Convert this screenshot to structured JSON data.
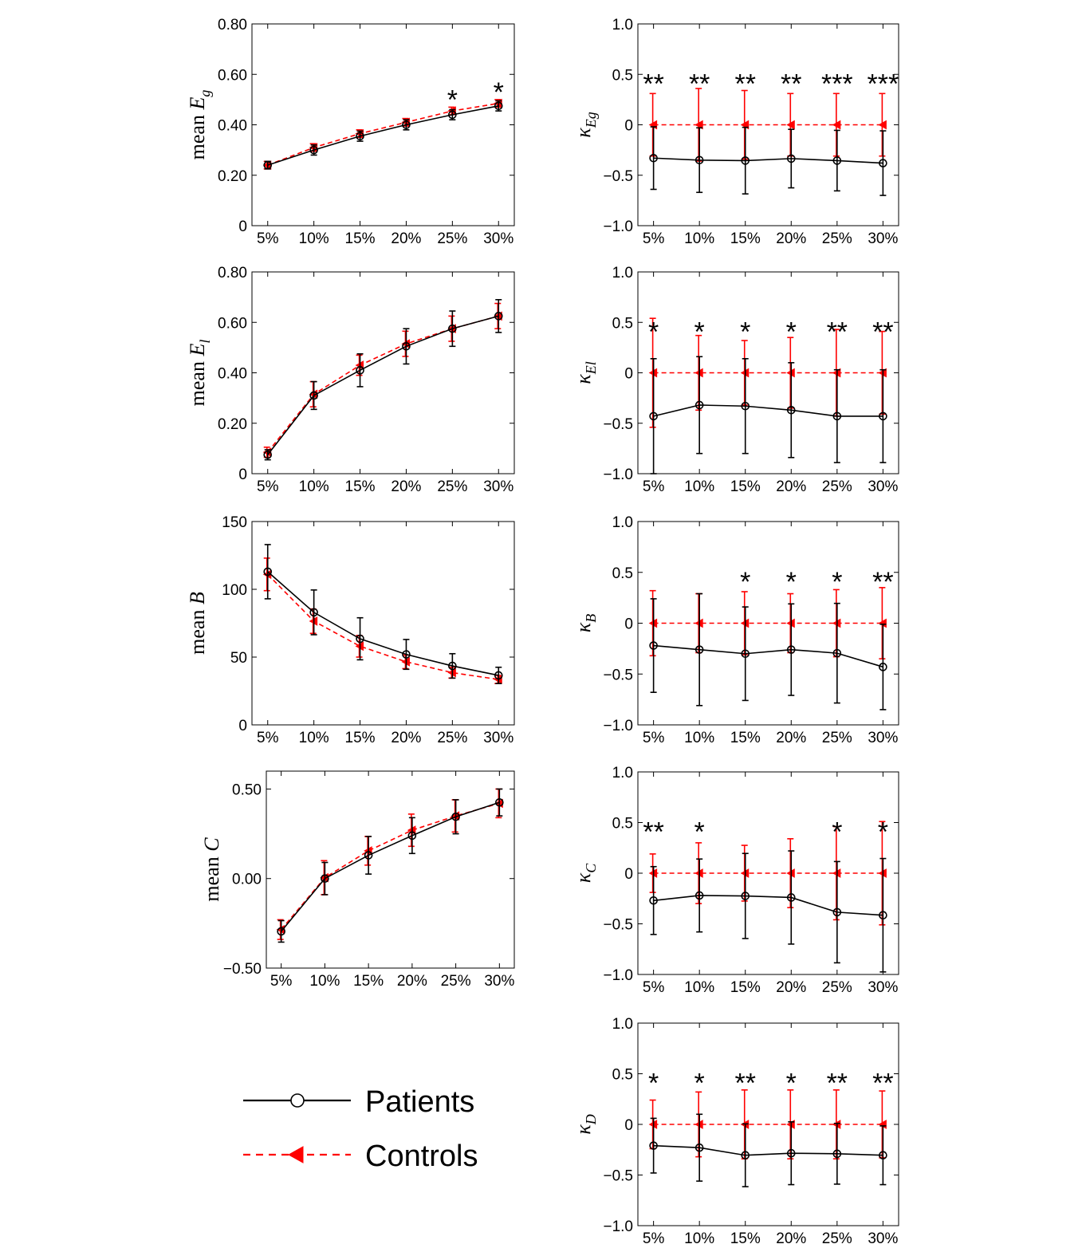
{
  "styles": {
    "patients_color": "#000000",
    "controls_color": "#ff0000"
  },
  "legend": {
    "location": "bottom-left",
    "entries": [
      {
        "label": "Patients",
        "line": "solid",
        "marker": "open-circle",
        "color": "#000000"
      },
      {
        "label": "Controls",
        "line": "dashed",
        "marker": "filled-left-triangle",
        "color": "#ff0000"
      }
    ]
  },
  "chart_data": [
    {
      "id": "mean_Eg",
      "type": "line",
      "ylabel": {
        "pre": "mean ",
        "sym": "E",
        "sub": "g"
      },
      "categories": [
        "5%",
        "10%",
        "15%",
        "20%",
        "25%",
        "30%"
      ],
      "ylim": [
        0,
        0.8
      ],
      "yticks": [
        0,
        0.2,
        0.4,
        0.6,
        0.8
      ],
      "ytick_labels": [
        "0",
        "0.20",
        "0.40",
        "0.60",
        "0.80"
      ],
      "significance": [
        "",
        "",
        "",
        "",
        "*",
        "*"
      ],
      "series": [
        {
          "name": "Patients",
          "values": [
            0.24,
            0.3,
            0.355,
            0.4,
            0.44,
            0.475
          ],
          "err": [
            0.015,
            0.02,
            0.02,
            0.02,
            0.02,
            0.02
          ]
        },
        {
          "name": "Controls",
          "values": [
            0.24,
            0.31,
            0.365,
            0.41,
            0.455,
            0.485
          ],
          "err": [
            0.015,
            0.015,
            0.015,
            0.015,
            0.015,
            0.015
          ]
        }
      ]
    },
    {
      "id": "kappa_Eg",
      "type": "line",
      "ylabel": {
        "pre": "",
        "sym": "κ",
        "sub": "Eg"
      },
      "categories": [
        "5%",
        "10%",
        "15%",
        "20%",
        "25%",
        "30%"
      ],
      "ylim": [
        -1,
        1
      ],
      "yticks": [
        -1,
        -0.5,
        0,
        0.5,
        1
      ],
      "ytick_labels": [
        "−1.0",
        "−0.5",
        "0",
        "0.5",
        "1.0"
      ],
      "significance": [
        "**",
        "**",
        "**",
        "**",
        "***",
        "***"
      ],
      "series": [
        {
          "name": "Patients",
          "values": [
            -0.33,
            -0.35,
            -0.355,
            -0.335,
            -0.355,
            -0.38
          ],
          "err": [
            0.31,
            0.32,
            0.33,
            0.29,
            0.3,
            0.32
          ]
        },
        {
          "name": "Controls",
          "values": [
            0,
            0,
            0,
            0,
            0,
            0
          ],
          "err": [
            0.31,
            0.36,
            0.34,
            0.31,
            0.31,
            0.31
          ]
        }
      ]
    },
    {
      "id": "mean_El",
      "type": "line",
      "ylabel": {
        "pre": "mean ",
        "sym": "E",
        "sub": "l"
      },
      "categories": [
        "5%",
        "10%",
        "15%",
        "20%",
        "25%",
        "30%"
      ],
      "ylim": [
        0,
        0.8
      ],
      "yticks": [
        0,
        0.2,
        0.4,
        0.6,
        0.8
      ],
      "ytick_labels": [
        "0",
        "0.20",
        "0.40",
        "0.60",
        "0.80"
      ],
      "significance": [
        "",
        "",
        "",
        "",
        "",
        ""
      ],
      "series": [
        {
          "name": "Patients",
          "values": [
            0.075,
            0.31,
            0.41,
            0.505,
            0.575,
            0.625
          ],
          "err": [
            0.02,
            0.055,
            0.065,
            0.07,
            0.07,
            0.065
          ]
        },
        {
          "name": "Controls",
          "values": [
            0.085,
            0.315,
            0.43,
            0.515,
            0.575,
            0.625
          ],
          "err": [
            0.02,
            0.05,
            0.04,
            0.05,
            0.05,
            0.05
          ]
        }
      ]
    },
    {
      "id": "kappa_El",
      "type": "line",
      "ylabel": {
        "pre": "",
        "sym": "κ",
        "sub": "El"
      },
      "categories": [
        "5%",
        "10%",
        "15%",
        "20%",
        "25%",
        "30%"
      ],
      "ylim": [
        -1,
        1
      ],
      "yticks": [
        -1,
        -0.5,
        0,
        0.5,
        1
      ],
      "ytick_labels": [
        "−1.0",
        "−0.5",
        "0",
        "0.5",
        "1.0"
      ],
      "significance": [
        "*",
        "*",
        "*",
        "*",
        "**",
        "**"
      ],
      "series": [
        {
          "name": "Patients",
          "values": [
            -0.43,
            -0.32,
            -0.33,
            -0.37,
            -0.43,
            -0.43
          ],
          "err": [
            0.57,
            0.48,
            0.47,
            0.47,
            0.46,
            0.46
          ]
        },
        {
          "name": "Controls",
          "values": [
            0,
            0,
            0,
            0,
            0,
            0
          ],
          "err": [
            0.54,
            0.37,
            0.32,
            0.35,
            0.43,
            0.41
          ]
        }
      ]
    },
    {
      "id": "mean_B",
      "type": "line",
      "ylabel": {
        "pre": "mean ",
        "sym": "B",
        "sub": ""
      },
      "categories": [
        "5%",
        "10%",
        "15%",
        "20%",
        "25%",
        "30%"
      ],
      "ylim": [
        0,
        150
      ],
      "yticks": [
        0,
        50,
        100,
        150
      ],
      "ytick_labels": [
        "0",
        "50",
        "100",
        "150"
      ],
      "significance": [
        "",
        "",
        "",
        "",
        "",
        ""
      ],
      "series": [
        {
          "name": "Patients",
          "values": [
            113,
            83,
            63.5,
            52,
            43.5,
            36.5
          ],
          "err": [
            20,
            16.5,
            15.5,
            11,
            9,
            6
          ]
        },
        {
          "name": "Controls",
          "values": [
            111,
            76.5,
            58,
            46.5,
            38.5,
            33.5
          ],
          "err": [
            12,
            9,
            8,
            5,
            4,
            3
          ]
        }
      ]
    },
    {
      "id": "kappa_B",
      "type": "line",
      "ylabel": {
        "pre": "",
        "sym": "κ",
        "sub": "B"
      },
      "categories": [
        "5%",
        "10%",
        "15%",
        "20%",
        "25%",
        "30%"
      ],
      "ylim": [
        -1,
        1
      ],
      "yticks": [
        -1,
        -0.5,
        0,
        0.5,
        1
      ],
      "ytick_labels": [
        "−1.0",
        "−0.5",
        "0",
        "0.5",
        "1.0"
      ],
      "significance": [
        "",
        "",
        "*",
        "*",
        "*",
        "**"
      ],
      "series": [
        {
          "name": "Patients",
          "values": [
            -0.22,
            -0.26,
            -0.3,
            -0.26,
            -0.295,
            -0.43
          ],
          "err": [
            0.46,
            0.55,
            0.46,
            0.45,
            0.49,
            0.42
          ]
        },
        {
          "name": "Controls",
          "values": [
            0,
            0,
            0,
            0,
            0,
            0
          ],
          "err": [
            0.32,
            0.29,
            0.31,
            0.29,
            0.33,
            0.35
          ]
        }
      ]
    },
    {
      "id": "mean_C",
      "type": "line",
      "ylabel": {
        "pre": "mean ",
        "sym": "C",
        "sub": ""
      },
      "categories": [
        "5%",
        "10%",
        "15%",
        "20%",
        "25%",
        "30%"
      ],
      "ylim": [
        -0.5,
        0.6
      ],
      "yticks": [
        -0.5,
        0,
        0.5
      ],
      "ytick_labels": [
        "−0.50",
        "0.00",
        "0.50"
      ],
      "significance": [
        "",
        "",
        "",
        "",
        "",
        ""
      ],
      "series": [
        {
          "name": "Patients",
          "values": [
            -0.295,
            0.0,
            0.13,
            0.24,
            0.345,
            0.425
          ],
          "err": [
            0.06,
            0.09,
            0.105,
            0.1,
            0.095,
            0.075
          ]
        },
        {
          "name": "Controls",
          "values": [
            -0.285,
            0.005,
            0.155,
            0.27,
            0.35,
            0.42
          ],
          "err": [
            0.055,
            0.095,
            0.08,
            0.09,
            0.09,
            0.08
          ]
        }
      ]
    },
    {
      "id": "kappa_C",
      "type": "line",
      "ylabel": {
        "pre": "",
        "sym": "κ",
        "sub": "C"
      },
      "categories": [
        "5%",
        "10%",
        "15%",
        "20%",
        "25%",
        "30%"
      ],
      "ylim": [
        -1,
        1
      ],
      "yticks": [
        -1,
        -0.5,
        0,
        0.5,
        1
      ],
      "ytick_labels": [
        "−1.0",
        "−0.5",
        "0",
        "0.5",
        "1.0"
      ],
      "significance": [
        "**",
        "*",
        "",
        "",
        "*",
        "*"
      ],
      "series": [
        {
          "name": "Patients",
          "values": [
            -0.27,
            -0.22,
            -0.225,
            -0.24,
            -0.385,
            -0.415
          ],
          "err": [
            0.335,
            0.36,
            0.42,
            0.46,
            0.5,
            0.56
          ]
        },
        {
          "name": "Controls",
          "values": [
            0,
            0,
            0,
            0,
            0,
            0
          ],
          "err": [
            0.19,
            0.3,
            0.275,
            0.34,
            0.46,
            0.51
          ]
        }
      ]
    },
    {
      "id": "kappa_D",
      "type": "line",
      "ylabel": {
        "pre": "",
        "sym": "κ",
        "sub": "D"
      },
      "categories": [
        "5%",
        "10%",
        "15%",
        "20%",
        "25%",
        "30%"
      ],
      "ylim": [
        -1,
        1
      ],
      "yticks": [
        -1,
        -0.5,
        0,
        0.5,
        1
      ],
      "ytick_labels": [
        "−1.0",
        "−0.5",
        "0",
        "0.5",
        "1.0"
      ],
      "significance": [
        "*",
        "*",
        "**",
        "*",
        "**",
        "**"
      ],
      "series": [
        {
          "name": "Patients",
          "values": [
            -0.21,
            -0.23,
            -0.305,
            -0.285,
            -0.29,
            -0.305
          ],
          "err": [
            0.27,
            0.33,
            0.31,
            0.31,
            0.3,
            0.29
          ]
        },
        {
          "name": "Controls",
          "values": [
            0,
            0,
            0,
            0,
            0,
            0
          ],
          "err": [
            0.24,
            0.32,
            0.34,
            0.34,
            0.34,
            0.33
          ]
        }
      ]
    }
  ]
}
